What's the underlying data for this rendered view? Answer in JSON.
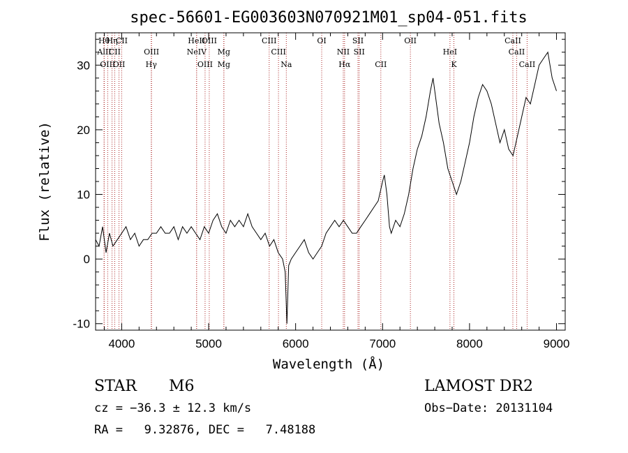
{
  "chart_data": {
    "type": "line",
    "title": "spec-56601-EG003603N070921M01_sp04-051.fits",
    "xlabel": "Wavelength (Å)",
    "ylabel": "Flux (relative)",
    "xlim": [
      3700,
      9100
    ],
    "ylim": [
      -11,
      35
    ],
    "xticks": [
      4000,
      5000,
      6000,
      7000,
      8000,
      9000
    ],
    "yticks": [
      -10,
      0,
      10,
      20,
      30
    ],
    "grid": false,
    "line_color": "#000000",
    "marker_color": "#aa2222",
    "series": [
      {
        "x": [
          3700,
          3740,
          3780,
          3820,
          3860,
          3900,
          3950,
          4000,
          4050,
          4100,
          4150,
          4200,
          4250,
          4300,
          4350,
          4400,
          4450,
          4500,
          4550,
          4600,
          4650,
          4700,
          4750,
          4800,
          4850,
          4900,
          4950,
          5000,
          5050,
          5100,
          5150,
          5200,
          5250,
          5300,
          5350,
          5400,
          5450,
          5500,
          5550,
          5600,
          5650,
          5700,
          5750,
          5800,
          5850,
          5880,
          5900,
          5920,
          5950,
          6000,
          6050,
          6100,
          6150,
          6200,
          6250,
          6300,
          6350,
          6400,
          6450,
          6500,
          6550,
          6600,
          6650,
          6700,
          6750,
          6800,
          6850,
          6900,
          6950,
          7000,
          7020,
          7050,
          7080,
          7100,
          7150,
          7200,
          7250,
          7300,
          7350,
          7400,
          7450,
          7500,
          7550,
          7580,
          7600,
          7650,
          7700,
          7750,
          7800,
          7850,
          7900,
          7950,
          8000,
          8050,
          8100,
          8150,
          8200,
          8250,
          8300,
          8350,
          8400,
          8450,
          8500,
          8550,
          8600,
          8650,
          8700,
          8750,
          8800,
          8850,
          8900,
          8950,
          9000
        ],
        "y": [
          3,
          2,
          5,
          1,
          4,
          2,
          3,
          4,
          5,
          3,
          4,
          2,
          3,
          3,
          4,
          4,
          5,
          4,
          4,
          5,
          3,
          5,
          4,
          5,
          4,
          3,
          5,
          4,
          6,
          7,
          5,
          4,
          6,
          5,
          6,
          5,
          7,
          5,
          4,
          3,
          4,
          2,
          3,
          1,
          0,
          -2,
          -10,
          -1,
          0,
          1,
          2,
          3,
          1,
          0,
          1,
          2,
          4,
          5,
          6,
          5,
          6,
          5,
          4,
          4,
          5,
          6,
          7,
          8,
          9,
          12,
          13,
          10,
          5,
          4,
          6,
          5,
          7,
          10,
          14,
          17,
          19,
          22,
          26,
          28,
          26,
          21,
          18,
          14,
          12,
          10,
          12,
          15,
          18,
          22,
          25,
          27,
          26,
          24,
          21,
          18,
          20,
          17,
          16,
          19,
          22,
          25,
          24,
          27,
          30,
          31,
          32,
          28,
          26
        ]
      }
    ],
    "lines": [
      {
        "label": "Hθ",
        "x": 3797
      },
      {
        "label": "AlII",
        "x": 3800
      },
      {
        "label": "OIII",
        "x": 3839
      },
      {
        "label": "Hη",
        "x": 3889
      },
      {
        "label": "CII",
        "x": 3920
      },
      {
        "label": "OII",
        "x": 3969
      },
      {
        "label": "CII",
        "x": 4000
      },
      {
        "label": "OIII",
        "x": 4343
      },
      {
        "label": "Hγ",
        "x": 4340
      },
      {
        "label": "HeII",
        "x": 4861
      },
      {
        "label": "NeIV",
        "x": 4862
      },
      {
        "label": "OIII",
        "x": 4959
      },
      {
        "label": "OIII",
        "x": 5007
      },
      {
        "label": "Mg",
        "x": 5175
      },
      {
        "label": "Mg",
        "x": 5175
      },
      {
        "label": "CIII",
        "x": 5696
      },
      {
        "label": "CIII",
        "x": 5803
      },
      {
        "label": "Na",
        "x": 5893
      },
      {
        "label": "OI",
        "x": 6300
      },
      {
        "label": "NII",
        "x": 6548
      },
      {
        "label": "Hα",
        "x": 6563
      },
      {
        "label": "SII",
        "x": 6717
      },
      {
        "label": "SII",
        "x": 6731
      },
      {
        "label": "CII",
        "x": 6980
      },
      {
        "label": "OII",
        "x": 7320
      },
      {
        "label": "HeI",
        "x": 7775
      },
      {
        "label": "K",
        "x": 7820
      },
      {
        "label": "CaII",
        "x": 8498
      },
      {
        "label": "CaII",
        "x": 8542
      },
      {
        "label": "CaII",
        "x": 8662
      }
    ]
  },
  "info": {
    "class": "STAR",
    "subclass": "M6",
    "survey": "LAMOST DR2",
    "cz": "cz = −36.3 ± 12.3 km/s",
    "obs_date": "Obs−Date: 20131104",
    "radec": "RA =   9.32876, DEC =   7.48188"
  }
}
